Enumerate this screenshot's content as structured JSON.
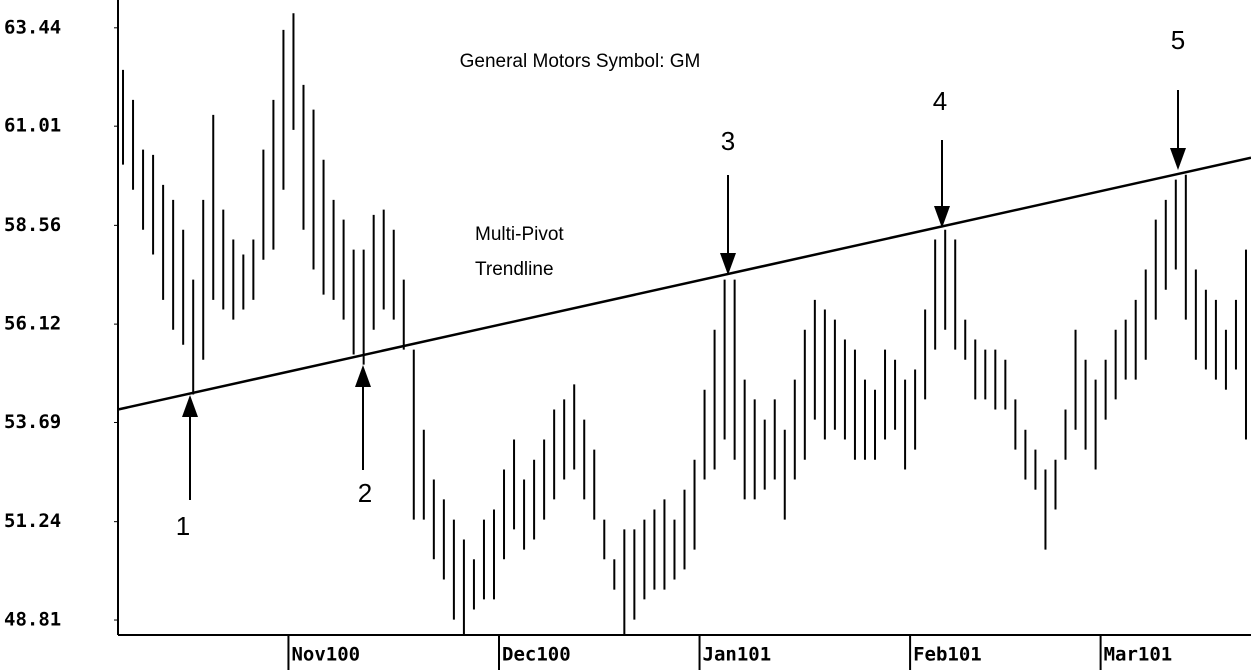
{
  "chart_data": {
    "type": "ohlc",
    "title": "General Motors Symbol: GM",
    "categories": [
      null,
      null,
      null,
      null,
      null,
      null,
      null,
      null,
      null,
      null,
      null,
      null,
      null,
      null,
      null,
      null,
      null,
      "Nov100",
      null,
      null,
      null,
      null,
      null,
      null,
      null,
      null,
      null,
      null,
      null,
      null,
      null,
      null,
      null,
      null,
      null,
      null,
      null,
      null,
      "Dec100",
      null,
      null,
      null,
      null,
      null,
      null,
      null,
      null,
      null,
      null,
      null,
      null,
      null,
      null,
      null,
      null,
      null,
      null,
      null,
      "Jan101",
      null,
      null,
      null,
      null,
      null,
      null,
      null,
      null,
      null,
      null,
      null,
      null,
      null,
      null,
      null,
      null,
      null,
      null,
      null,
      null,
      "Feb101",
      null,
      null,
      null,
      null,
      null,
      null,
      null,
      null,
      null,
      null,
      null,
      null,
      null,
      null,
      null,
      null,
      null,
      null,
      "Mar101",
      null,
      null,
      null,
      null,
      null,
      null,
      null,
      null,
      null,
      null,
      null,
      null,
      null,
      null
    ],
    "high": [
      62.4,
      61.66,
      60.43,
      60.3,
      59.56,
      59.19,
      58.45,
      57.22,
      59.19,
      61.29,
      58.95,
      58.21,
      57.84,
      58.21,
      60.43,
      61.66,
      63.39,
      63.8,
      62.03,
      61.42,
      60.18,
      59.19,
      58.7,
      57.96,
      57.96,
      58.82,
      58.95,
      58.45,
      57.22,
      55.49,
      53.51,
      52.28,
      51.79,
      51.29,
      50.8,
      50.31,
      51.29,
      51.54,
      52.53,
      53.27,
      52.28,
      52.77,
      53.27,
      54.01,
      54.26,
      54.63,
      53.76,
      53.02,
      51.29,
      50.31,
      51.05,
      51.05,
      51.29,
      51.54,
      51.79,
      51.29,
      52.03,
      52.77,
      54.5,
      55.98,
      57.22,
      57.22,
      54.75,
      54.26,
      53.76,
      54.26,
      53.51,
      54.75,
      55.98,
      56.72,
      56.48,
      56.23,
      55.74,
      55.49,
      54.75,
      54.5,
      55.49,
      55.24,
      54.75,
      55.0,
      56.48,
      58.21,
      58.45,
      58.21,
      56.23,
      55.74,
      55.49,
      55.49,
      55.24,
      54.26,
      53.51,
      53.02,
      52.53,
      52.77,
      54.01,
      55.98,
      55.24,
      54.75,
      55.24,
      55.98,
      56.23,
      56.72,
      57.47,
      58.7,
      59.19,
      59.69,
      59.81,
      57.47,
      56.97,
      56.72,
      55.98,
      56.72,
      57.96
    ],
    "low": [
      60.06,
      59.44,
      58.45,
      57.84,
      56.72,
      55.98,
      55.61,
      54.38,
      55.24,
      56.72,
      56.48,
      56.23,
      56.48,
      56.72,
      57.71,
      57.96,
      59.44,
      60.92,
      58.45,
      57.47,
      56.85,
      56.72,
      56.23,
      55.37,
      55.12,
      55.98,
      56.48,
      56.23,
      55.49,
      51.29,
      51.29,
      50.31,
      49.81,
      48.82,
      48.45,
      49.07,
      49.32,
      49.32,
      50.31,
      51.05,
      50.55,
      50.8,
      51.29,
      51.79,
      52.28,
      52.53,
      51.79,
      51.29,
      50.31,
      49.56,
      48.45,
      48.82,
      49.32,
      49.56,
      49.56,
      49.81,
      50.06,
      50.55,
      52.28,
      52.53,
      53.27,
      52.77,
      51.79,
      51.79,
      52.03,
      52.28,
      51.29,
      52.28,
      52.77,
      53.76,
      53.27,
      53.51,
      53.27,
      52.77,
      52.77,
      52.77,
      53.27,
      53.51,
      52.53,
      53.02,
      54.26,
      55.49,
      55.98,
      55.49,
      55.24,
      54.26,
      54.26,
      54.01,
      54.01,
      53.02,
      52.28,
      52.03,
      50.55,
      51.54,
      52.77,
      53.51,
      53.02,
      52.53,
      53.76,
      54.26,
      54.75,
      54.75,
      55.24,
      56.23,
      56.97,
      57.47,
      56.23,
      55.24,
      55.0,
      54.75,
      54.5,
      55.0,
      53.27
    ],
    "color": "#000000",
    "ylim": [
      48.44,
      63.88
    ],
    "yticks": [
      48.81,
      51.24,
      53.69,
      56.12,
      58.56,
      61.01,
      63.44
    ],
    "trendline": {
      "start": 54.01,
      "end": 60.23,
      "label": [
        "Multi-Pivot",
        "Trendline"
      ]
    },
    "annotations": [
      "1",
      "2",
      "3",
      "4",
      "5"
    ]
  }
}
